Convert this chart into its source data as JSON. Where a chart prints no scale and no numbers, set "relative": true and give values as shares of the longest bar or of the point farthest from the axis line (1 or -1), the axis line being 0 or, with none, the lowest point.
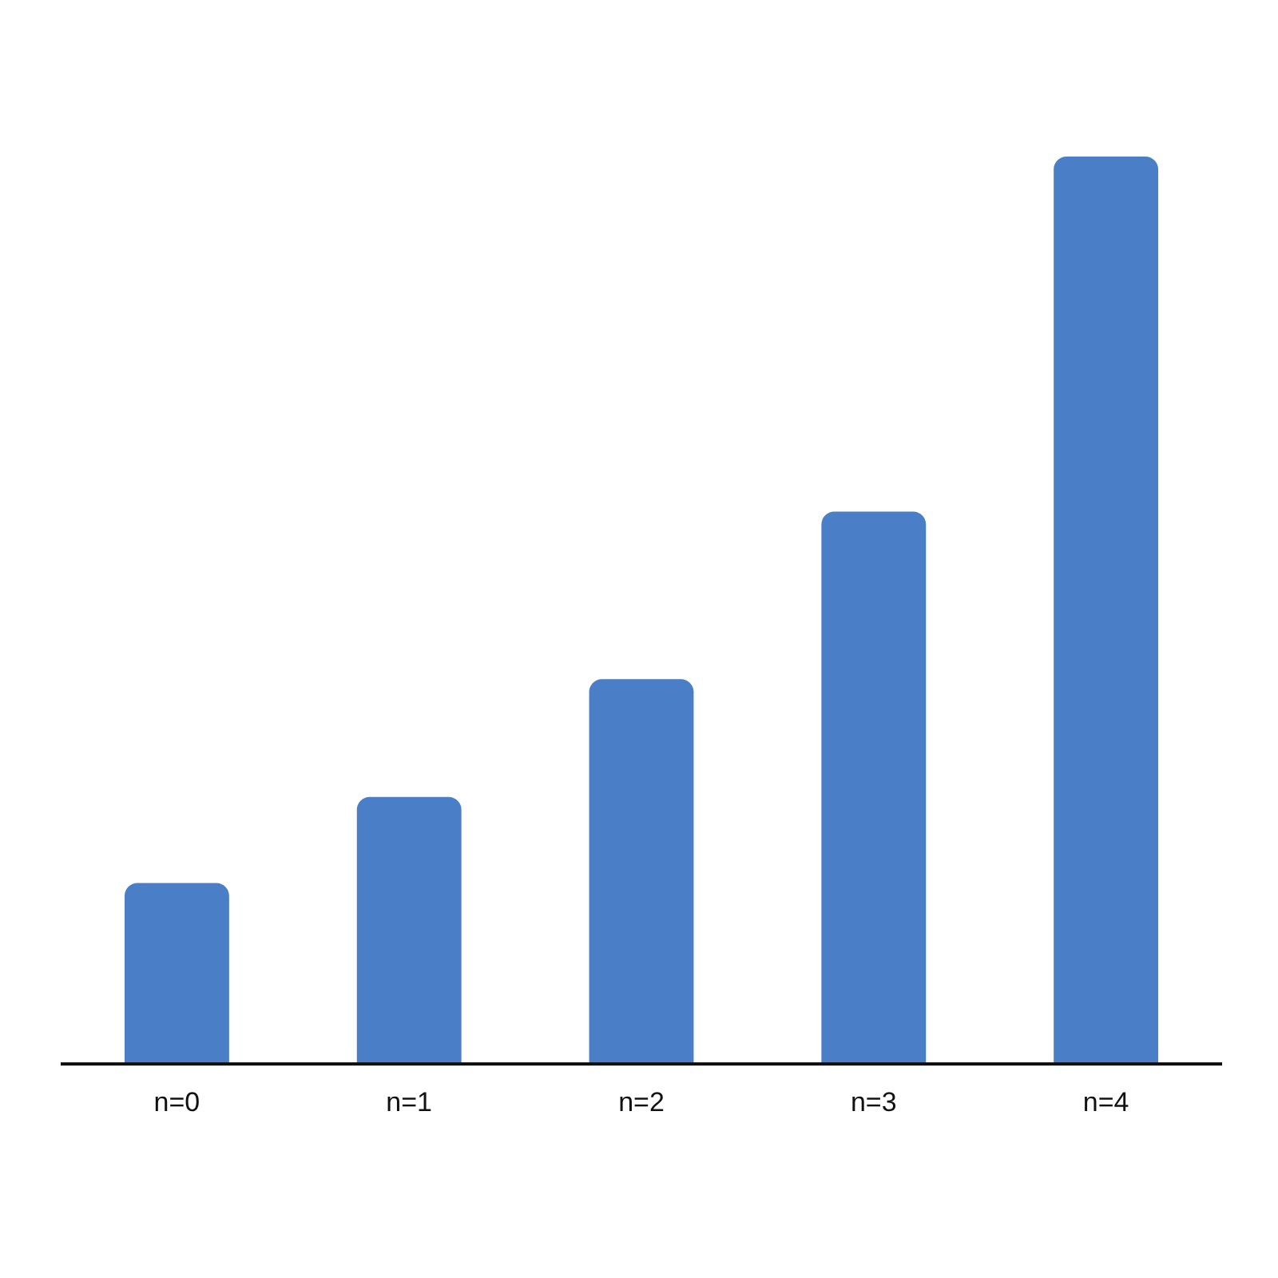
{
  "chart_data": {
    "type": "bar",
    "relative": true,
    "categories": [
      "n=0",
      "n=1",
      "n=2",
      "n=3",
      "n=4"
    ],
    "values": [
      0.198,
      0.293,
      0.423,
      0.608,
      1
    ],
    "color": "#4a7fc8",
    "grid": false,
    "legend": false
  }
}
